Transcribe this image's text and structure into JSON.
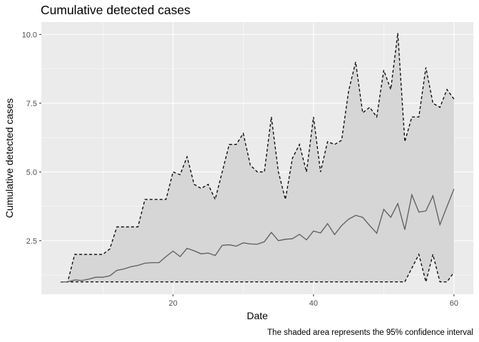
{
  "chart_data": {
    "type": "line",
    "title": "Cumulative detected cases",
    "xlabel": "Date",
    "ylabel": "Cumulative detected cases",
    "caption": "The shaded area represents the 95% confidence interval",
    "x_ticks": [
      20,
      40,
      60
    ],
    "y_ticks": [
      2.5,
      5.0,
      7.5,
      10.0
    ],
    "y_tick_labels": [
      "2.5",
      "5.0",
      "7.5",
      "10.0"
    ],
    "xlim": [
      1.25,
      62.75
    ],
    "ylim": [
      0.55,
      10.45
    ],
    "grid": true,
    "x": [
      4,
      5,
      6,
      7,
      8,
      9,
      10,
      11,
      12,
      13,
      14,
      15,
      16,
      17,
      18,
      19,
      20,
      21,
      22,
      23,
      24,
      25,
      26,
      27,
      28,
      29,
      30,
      31,
      32,
      33,
      34,
      35,
      36,
      37,
      38,
      39,
      40,
      41,
      42,
      43,
      44,
      45,
      46,
      47,
      48,
      49,
      50,
      51,
      52,
      53,
      54,
      55,
      56,
      57,
      58,
      59,
      60
    ],
    "series": [
      {
        "role": "mean",
        "values": [
          1.0,
          1.0,
          1.07,
          1.05,
          1.1,
          1.17,
          1.17,
          1.22,
          1.42,
          1.47,
          1.55,
          1.6,
          1.68,
          1.7,
          1.7,
          1.92,
          2.12,
          1.92,
          2.22,
          2.13,
          2.02,
          2.05,
          1.96,
          2.33,
          2.35,
          2.3,
          2.42,
          2.38,
          2.37,
          2.46,
          2.8,
          2.5,
          2.55,
          2.57,
          2.73,
          2.53,
          2.85,
          2.78,
          3.12,
          2.72,
          3.05,
          3.28,
          3.42,
          3.35,
          3.05,
          2.77,
          3.64,
          3.35,
          3.85,
          2.9,
          4.17,
          3.54,
          3.58,
          4.13,
          3.08,
          3.74,
          4.38
        ]
      },
      {
        "role": "upper_95",
        "values": [
          1.0,
          1.0,
          2.0,
          2.0,
          2.0,
          2.0,
          2.0,
          2.2,
          3.0,
          3.0,
          3.0,
          3.0,
          4.0,
          4.0,
          4.0,
          4.0,
          5.0,
          4.9,
          5.55,
          4.55,
          4.4,
          4.55,
          4.0,
          5.0,
          6.0,
          6.0,
          6.4,
          5.25,
          5.0,
          5.0,
          7.0,
          5.0,
          4.0,
          5.5,
          6.0,
          5.0,
          7.0,
          5.0,
          6.1,
          6.0,
          6.15,
          7.95,
          9.0,
          7.15,
          7.35,
          7.0,
          8.7,
          8.0,
          10.05,
          6.1,
          7.0,
          7.0,
          8.8,
          7.5,
          7.35,
          8.0,
          7.65
        ]
      },
      {
        "role": "lower_95",
        "values": [
          1.0,
          1.0,
          1.0,
          1.0,
          1.0,
          1.0,
          1.0,
          1.0,
          1.0,
          1.0,
          1.0,
          1.0,
          1.0,
          1.0,
          1.0,
          1.0,
          1.0,
          1.0,
          1.0,
          1.0,
          1.0,
          1.0,
          1.0,
          1.0,
          1.0,
          1.0,
          1.0,
          1.0,
          1.0,
          1.0,
          1.0,
          1.0,
          1.0,
          1.0,
          1.0,
          1.0,
          1.0,
          1.0,
          1.0,
          1.0,
          1.0,
          1.0,
          1.0,
          1.0,
          1.0,
          1.0,
          1.0,
          1.0,
          1.0,
          1.0,
          1.5,
          2.0,
          1.0,
          2.0,
          1.0,
          1.0,
          1.35
        ]
      }
    ],
    "colors": {
      "panel_bg": "#ebebeb",
      "grid_major": "#ffffff",
      "band_fill": "#d6d6d6",
      "mean_line": "#5c5c5c",
      "bound_line": "#000000",
      "tick_text": "#4d4d4d",
      "tick_mark": "#333333"
    }
  }
}
